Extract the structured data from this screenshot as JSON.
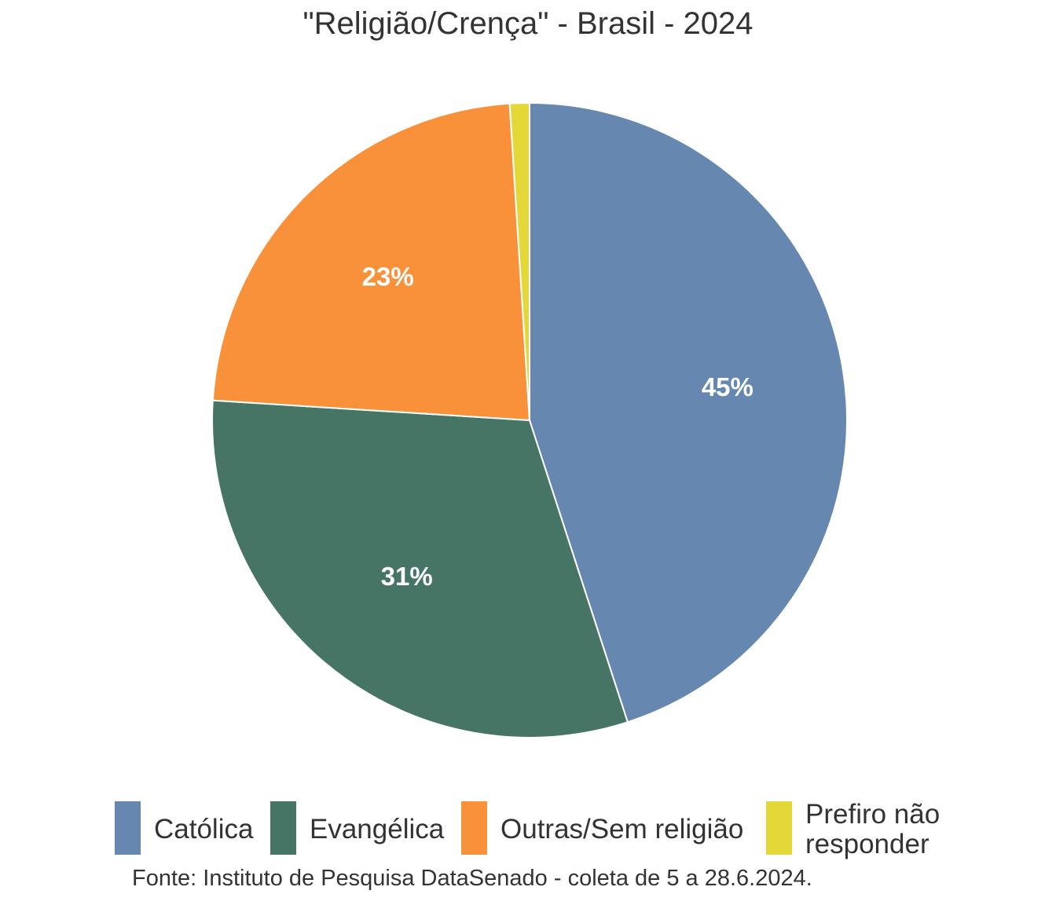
{
  "chart_data": {
    "type": "pie",
    "title": "\"Religião/Crença\" - Brasil - 2024",
    "categories": [
      "Católica",
      "Evangélica",
      "Outras/Sem religião",
      "Prefiro não responder"
    ],
    "values": [
      45,
      31,
      23,
      1
    ],
    "labels": [
      "45%",
      "31%",
      "23%",
      ""
    ],
    "colors": [
      "#6688b0",
      "#467565",
      "#f8913a",
      "#e4d738"
    ],
    "legend_position": "bottom",
    "legend": [
      {
        "lines": [
          "Católica"
        ]
      },
      {
        "lines": [
          "Evangélica"
        ]
      },
      {
        "lines": [
          "Outras/Sem religião"
        ]
      },
      {
        "lines": [
          "Prefiro não",
          "responder"
        ]
      }
    ]
  },
  "source_note": "Fonte: Instituto de Pesquisa DataSenado - coleta de 5 a 28.6.2024."
}
